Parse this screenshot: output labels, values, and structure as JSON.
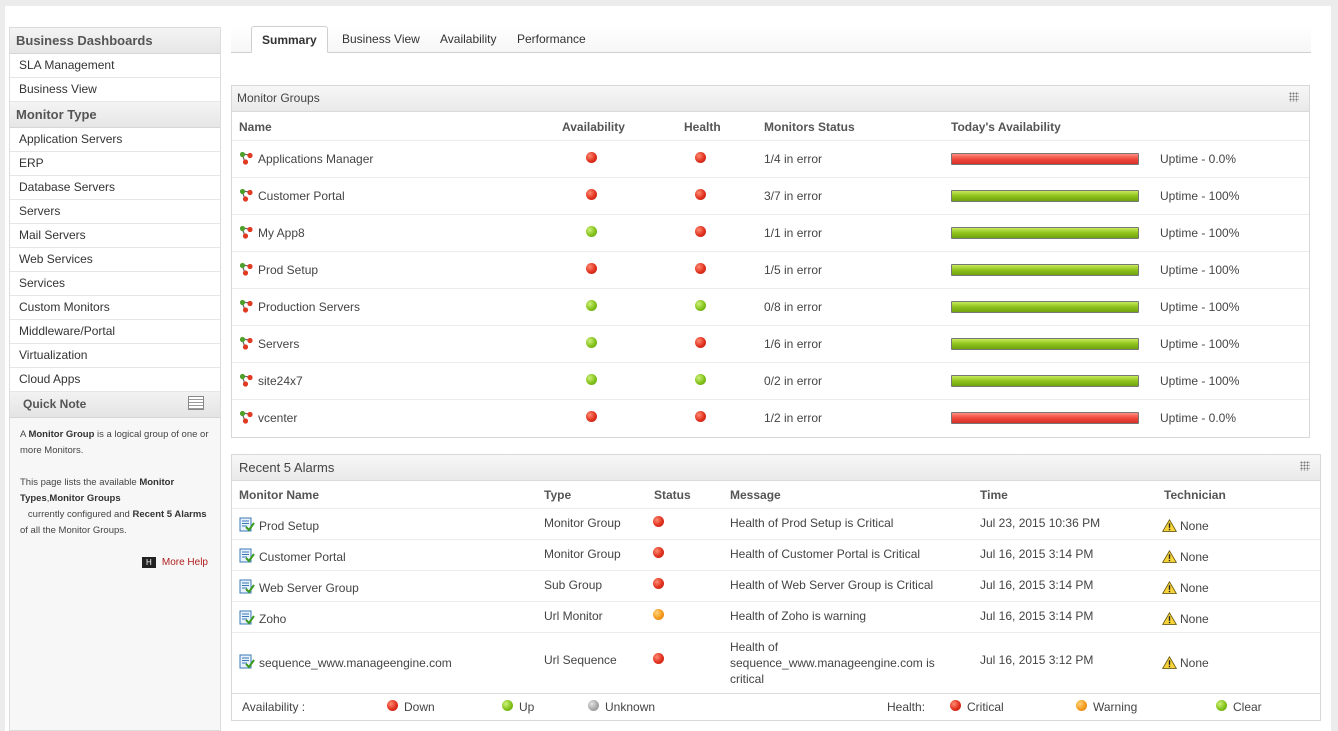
{
  "sidebar": {
    "section1": "Business Dashboards",
    "section1_items": [
      "SLA Management",
      "Business View"
    ],
    "section2": "Monitor Type",
    "section2_items": [
      "Application Servers",
      "ERP",
      "Database Servers",
      "Servers",
      "Mail Servers",
      "Web Services",
      "Services",
      "Custom Monitors",
      "Middleware/Portal",
      "Virtualization",
      "Cloud Apps"
    ],
    "quick_note": {
      "title": "Quick Note",
      "p1_a": "A ",
      "p1_b": "Monitor Group",
      "p1_c": " is a logical group of one or more Monitors.",
      "p2_a": "This page lists the available ",
      "p2_b": "Monitor Types",
      "p2_c": ",",
      "p2_d": "Monitor Groups",
      "p2_e": "   currently configured and ",
      "p2_f": "Recent 5 Alarms",
      "p2_g": " of all the Monitor Groups.",
      "more_help": "More Help"
    }
  },
  "tabs": [
    "Summary",
    "Business View",
    "Availability",
    "Performance"
  ],
  "monitor_groups": {
    "title": "Monitor Groups",
    "columns": [
      "Name",
      "Availability",
      "Health",
      "Monitors Status",
      "Today's Availability"
    ],
    "rows": [
      {
        "name": "Applications Manager",
        "availability": "red",
        "health": "red",
        "status": "1/4 in error",
        "bar": "red",
        "uptime": "Uptime - 0.0%"
      },
      {
        "name": "Customer Portal",
        "availability": "red",
        "health": "red",
        "status": "3/7 in error",
        "bar": "green",
        "uptime": "Uptime - 100%"
      },
      {
        "name": "My App8",
        "availability": "green",
        "health": "red",
        "status": "1/1 in error",
        "bar": "green",
        "uptime": "Uptime - 100%"
      },
      {
        "name": "Prod Setup",
        "availability": "red",
        "health": "red",
        "status": "1/5 in error",
        "bar": "green",
        "uptime": "Uptime - 100%"
      },
      {
        "name": "Production Servers",
        "availability": "green",
        "health": "green",
        "status": "0/8 in error",
        "bar": "green",
        "uptime": "Uptime - 100%"
      },
      {
        "name": "Servers",
        "availability": "green",
        "health": "red",
        "status": "1/6 in error",
        "bar": "green",
        "uptime": "Uptime - 100%"
      },
      {
        "name": "site24x7",
        "availability": "green",
        "health": "green",
        "status": "0/2 in error",
        "bar": "green",
        "uptime": "Uptime - 100%"
      },
      {
        "name": "vcenter",
        "availability": "red",
        "health": "red",
        "status": "1/2 in error",
        "bar": "red",
        "uptime": "Uptime - 0.0%"
      }
    ]
  },
  "alarms": {
    "title": "Recent 5 Alarms",
    "columns": [
      "Monitor Name",
      "Type",
      "Status",
      "Message",
      "Time",
      "Technician"
    ],
    "rows": [
      {
        "name": "Prod Setup",
        "type": "Monitor Group",
        "status": "red",
        "message": "Health of Prod Setup is Critical",
        "time": "Jul 23, 2015 10:36 PM",
        "technician": "None"
      },
      {
        "name": "Customer Portal",
        "type": "Monitor Group",
        "status": "red",
        "message": "Health of Customer Portal is Critical",
        "time": "Jul 16, 2015 3:14 PM",
        "technician": "None"
      },
      {
        "name": "Web Server Group",
        "type": "Sub Group",
        "status": "red",
        "message": "Health of Web Server Group is Critical",
        "time": "Jul 16, 2015 3:14 PM",
        "technician": "None"
      },
      {
        "name": "Zoho",
        "type": "Url Monitor",
        "status": "orange",
        "message": "Health of Zoho is warning",
        "time": "Jul 16, 2015 3:14 PM",
        "technician": "None"
      },
      {
        "name": "sequence_www.manageengine.com",
        "type": "Url Sequence",
        "status": "red",
        "message_lines": [
          "Health of",
          "sequence_www.manageengine.com is",
          "critical"
        ],
        "time": "Jul 16, 2015 3:12 PM",
        "technician": "None"
      }
    ]
  },
  "legend": {
    "availability_label": "Availability :",
    "down": "Down",
    "up": "Up",
    "unknown": "Unknown",
    "health_label": "Health:",
    "critical": "Critical",
    "warning": "Warning",
    "clear": "Clear"
  },
  "colors": {
    "down_critical": "#e0301e",
    "up_clear": "#82c21a",
    "warning": "#f59a1a",
    "unknown": "#a8a8a8"
  }
}
